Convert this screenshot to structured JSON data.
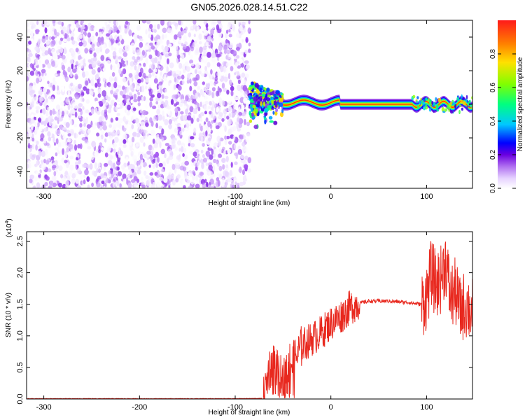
{
  "title": "GN05.2026.028.14.51.C22",
  "chart_data": [
    {
      "type": "heatmap",
      "xlabel": "Height of straight line (km)",
      "ylabel": "Frequency (Hz)",
      "xlim": [
        -318,
        148
      ],
      "ylim": [
        -50,
        50
      ],
      "xticks": [
        -300,
        -200,
        -100,
        0,
        100
      ],
      "yticks": [
        -40,
        -20,
        0,
        20,
        40
      ],
      "colorbar": {
        "label": "Normalized spectral amplitude",
        "range": [
          0,
          1
        ],
        "ticks": [
          "0.0",
          "0.2",
          "0.4",
          "0.6",
          "0.8"
        ],
        "tick_values": [
          0.0,
          0.2,
          0.4,
          0.6,
          0.8
        ]
      },
      "regions": [
        {
          "name": "broadband noise",
          "x_range": [
            -318,
            -85
          ],
          "freq_range": [
            -50,
            50
          ],
          "amplitude_range": [
            0.0,
            0.1
          ]
        },
        {
          "name": "transition",
          "x_range": [
            -85,
            -50
          ],
          "center_freq_hz": 3,
          "amplitude_range": [
            0.2,
            0.9
          ]
        },
        {
          "name": "narrowband signal",
          "x_range": [
            -50,
            148
          ],
          "center_freq_hz": 0,
          "amplitude_range": [
            0.7,
            1.0
          ]
        }
      ],
      "colors": {
        "scale": [
          "#ffffff",
          "#e6d2ff",
          "#a050f0",
          "#5a00d0",
          "#0000ff",
          "#00c8ff",
          "#00ff80",
          "#a0ff00",
          "#ffd000",
          "#ff2000"
        ]
      }
    },
    {
      "type": "line",
      "xlabel": "Height of straight line (km)",
      "ylabel": "SNR (10 * v/v)",
      "ymultiplier": "(x10",
      "ymultiplier_exp": "4",
      "ymultiplier_close": ")",
      "xlim": [
        -318,
        148
      ],
      "ylim": [
        0,
        2.65
      ],
      "xticks": [
        -300,
        -200,
        -100,
        0,
        100
      ],
      "yticks": [
        "0.0",
        "0.5",
        "1.0",
        "1.5",
        "2.0",
        "2.5"
      ],
      "ytick_values": [
        0.0,
        0.5,
        1.0,
        1.5,
        2.0,
        2.5
      ],
      "series": [
        {
          "color": "#e8281e",
          "x": [
            -318,
            -200,
            -100,
            -70,
            -65,
            -60,
            -55,
            -50,
            -45,
            -40,
            -30,
            -20,
            -10,
            0,
            10,
            20,
            30,
            40,
            60,
            80,
            95,
            100,
            105,
            110,
            115,
            120,
            125,
            130,
            135,
            140,
            148
          ],
          "y": [
            0.005,
            0.005,
            0.005,
            0.01,
            0.45,
            0.6,
            0.4,
            0.3,
            0.6,
            0.55,
            0.85,
            0.95,
            1.05,
            1.2,
            1.3,
            1.45,
            1.52,
            1.55,
            1.55,
            1.53,
            1.5,
            1.62,
            2.0,
            1.8,
            1.9,
            2.2,
            1.6,
            1.7,
            1.4,
            1.5,
            1.4
          ]
        }
      ]
    }
  ]
}
